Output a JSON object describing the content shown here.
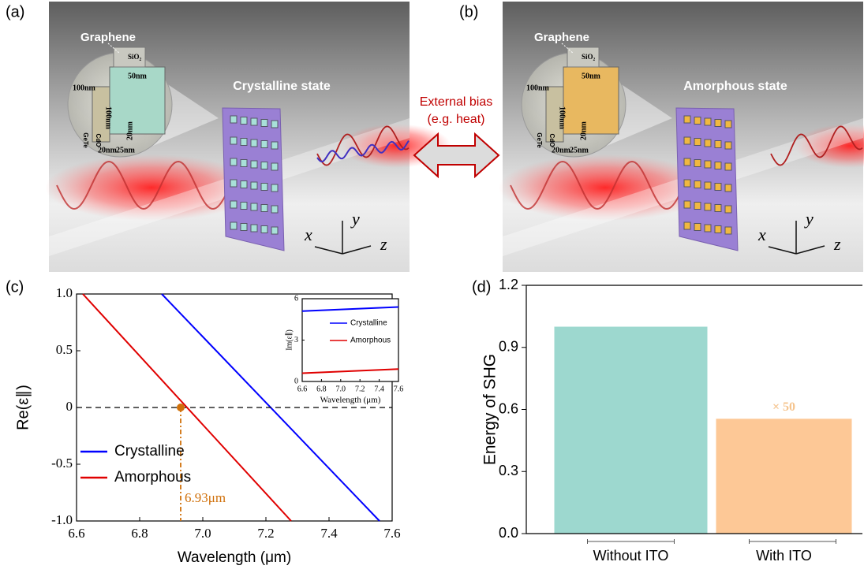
{
  "illustrations": [
    {
      "panel_label": "(a)",
      "material_label": "Graphene",
      "oxide_label": "SiO₂",
      "dimensions": [
        "100nm",
        "50nm",
        "100nm",
        "20nm",
        "25nm",
        "20nm"
      ],
      "layers": [
        "GeTe",
        "CdO"
      ],
      "state": "Crystalline state",
      "axes": [
        "x",
        "y",
        "z"
      ]
    },
    {
      "panel_label": "(b)",
      "material_label": "Graphene",
      "oxide_label": "SiO₂",
      "dimensions": [
        "100nm",
        "50nm",
        "100nm",
        "20nm",
        "25nm",
        "20nm"
      ],
      "layers": [
        "GeTe",
        "CdO"
      ],
      "state": "Amorphous state",
      "axes": [
        "x",
        "y",
        "z"
      ]
    }
  ],
  "transition": {
    "label": [
      "External bias",
      "(e.g. heat)"
    ]
  },
  "chart_data": [
    {
      "type": "line",
      "panel_label": "(c)",
      "xlabel": "Wavelength (μm)",
      "ylabel": "Re(ε∥)",
      "xlim": [
        6.6,
        7.6
      ],
      "xticks": [
        6.6,
        6.8,
        {
          "value": 7,
          "label": "7.0"
        },
        7.2,
        7.4,
        7.6
      ],
      "ylim": [
        -1,
        1
      ],
      "yticks": [
        {
          "value": -1,
          "label": "-1.0"
        },
        -0.5,
        0,
        0.5,
        {
          "value": 1,
          "label": "1.0"
        }
      ],
      "hline": 0,
      "legend": "lower left",
      "series": [
        {
          "name": "Crystalline",
          "color": "#0000ff",
          "x": [
            6.87,
            7.56
          ],
          "values": [
            1,
            -1
          ]
        },
        {
          "name": "Amorphous",
          "color": "#e00000",
          "x": [
            6.62,
            7.28
          ],
          "values": [
            1,
            -1
          ]
        }
      ],
      "annotation": {
        "text": "6.93μm",
        "x": 6.93,
        "y": 0,
        "color": "#d0700a"
      },
      "inset": {
        "xlabel": "Wavelength (μm)",
        "ylabel": "Im(ε∥)",
        "xlim": [
          6.6,
          7.6
        ],
        "xticks": [
          6.6,
          6.8,
          {
            "value": 7,
            "label": "7.0"
          },
          7.2,
          7.4,
          7.6
        ],
        "ylim": [
          0,
          6
        ],
        "yticks": [
          0,
          3,
          6
        ],
        "series": [
          {
            "name": "Crystalline",
            "color": "#0000ff",
            "x": [
              6.6,
              7.6
            ],
            "values": [
              5.1,
              5.4
            ]
          },
          {
            "name": "Amorphous",
            "color": "#e00000",
            "x": [
              6.6,
              7.6
            ],
            "values": [
              0.6,
              0.9
            ]
          }
        ]
      }
    },
    {
      "type": "bar",
      "panel_label": "(d)",
      "ylabel": "Energy of SHG",
      "categories": [
        "Without ITO",
        "With ITO"
      ],
      "values": [
        1.0,
        0.555
      ],
      "colors": [
        "#9dd8cf",
        "#fdc896"
      ],
      "ylim": [
        0,
        1.2
      ],
      "yticks": [
        {
          "value": 0,
          "label": "0.0"
        },
        0.3,
        0.6,
        0.9,
        1.2
      ],
      "annotation": {
        "text": "× 50",
        "category": 1,
        "color": "#f5c48e"
      }
    }
  ]
}
